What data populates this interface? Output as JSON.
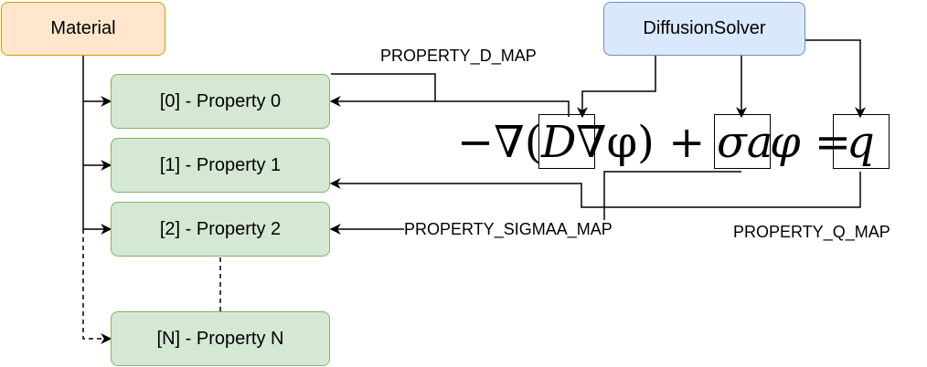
{
  "nodes": {
    "material": "Material",
    "solver": "DiffusionSolver",
    "properties": [
      "[0] - Property 0",
      "[1] - Property 1",
      "[2] - Property 2",
      "[N] - Property N"
    ]
  },
  "edge_labels": {
    "d_map": "PROPERTY_D_MAP",
    "sigmaa_map": "PROPERTY_SIGMAA_MAP",
    "q_map": "PROPERTY_Q_MAP"
  },
  "equation": {
    "minus_nabla": "−∇(",
    "d_term": "D",
    "nabla_phi": "∇φ) +",
    "sigma_term": "σa",
    "phi_eq": "φ =",
    "q_term": "q"
  },
  "colors": {
    "material_fill": "#ffe6cc",
    "material_stroke": "#d79b00",
    "solver_fill": "#dae8fc",
    "solver_stroke": "#6c8ebf",
    "property_fill": "#d5e8d4",
    "property_stroke": "#82b366"
  }
}
